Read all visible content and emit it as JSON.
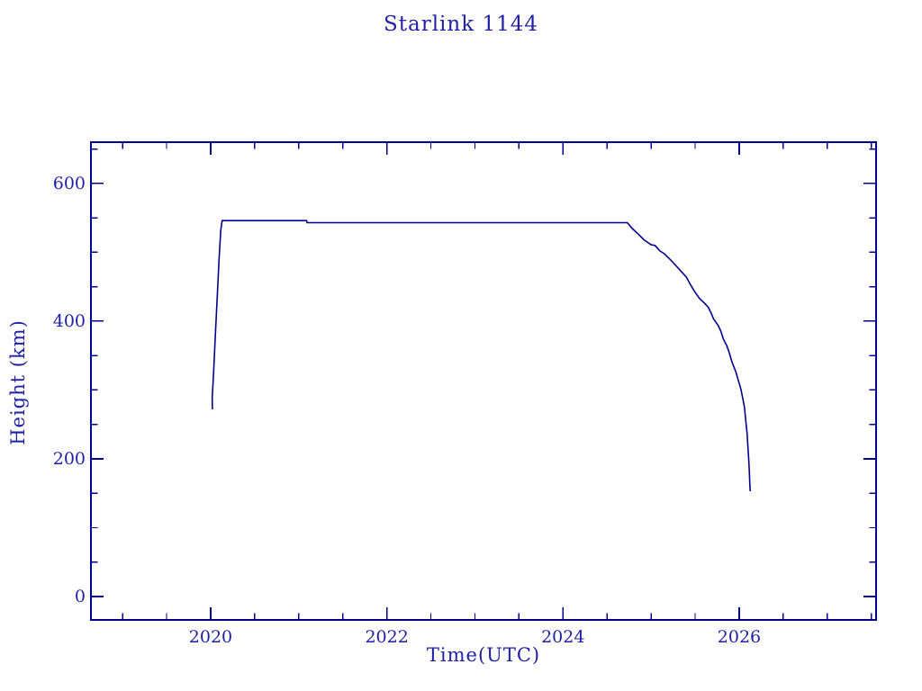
{
  "page": {
    "background": "#ffffff"
  },
  "colors": {
    "line": "#000090",
    "axis": "#000090",
    "text": "#1f1fa8"
  },
  "chart_data": {
    "type": "line",
    "title": "Starlink 1144",
    "xlabel": "Time(UTC)",
    "ylabel": "Height (km)",
    "x_range": [
      2018.641,
      2027.554
    ],
    "y_range": [
      -34,
      660
    ],
    "x_major_ticks": [
      2020,
      2022,
      2024,
      2026
    ],
    "x_tick_labels": [
      "2020",
      "2022",
      "2024",
      "2026"
    ],
    "x_minor_tick_step": 0.5,
    "y_major_ticks": [
      0,
      200,
      400,
      600
    ],
    "y_tick_labels": [
      "0",
      "200",
      "400",
      "600"
    ],
    "y_minor_tick_step": 50,
    "grid": false,
    "legend": "none",
    "frame": "box-with-inward-ticks",
    "series": [
      {
        "name": "orbital-height",
        "color": "#000090",
        "points": [
          [
            2020.02,
            272
          ],
          [
            2020.018,
            290
          ],
          [
            2020.022,
            298
          ],
          [
            2020.025,
            305
          ],
          [
            2020.035,
            330
          ],
          [
            2020.055,
            383
          ],
          [
            2020.075,
            436
          ],
          [
            2020.095,
            490
          ],
          [
            2020.115,
            532
          ],
          [
            2020.13,
            546
          ],
          [
            2021.09,
            546
          ],
          [
            2021.095,
            543
          ],
          [
            2024.73,
            543
          ],
          [
            2024.79,
            534
          ],
          [
            2024.85,
            527
          ],
          [
            2024.92,
            518
          ],
          [
            2025.0,
            511
          ],
          [
            2025.045,
            510
          ],
          [
            2025.1,
            502
          ],
          [
            2025.15,
            498
          ],
          [
            2025.22,
            489
          ],
          [
            2025.28,
            481
          ],
          [
            2025.35,
            471
          ],
          [
            2025.4,
            464
          ],
          [
            2025.45,
            452
          ],
          [
            2025.5,
            442
          ],
          [
            2025.55,
            433
          ],
          [
            2025.6,
            427
          ],
          [
            2025.65,
            420
          ],
          [
            2025.68,
            412
          ],
          [
            2025.71,
            403
          ],
          [
            2025.76,
            394
          ],
          [
            2025.79,
            386
          ],
          [
            2025.82,
            374
          ],
          [
            2025.86,
            364
          ],
          [
            2025.89,
            353
          ],
          [
            2025.92,
            340
          ],
          [
            2025.96,
            327
          ],
          [
            2025.99,
            314
          ],
          [
            2026.02,
            301
          ],
          [
            2026.04,
            288
          ],
          [
            2026.06,
            275
          ],
          [
            2026.07,
            262
          ],
          [
            2026.08,
            249
          ],
          [
            2026.09,
            236
          ],
          [
            2026.1,
            217
          ],
          [
            2026.108,
            200
          ],
          [
            2026.115,
            183
          ],
          [
            2026.12,
            165
          ],
          [
            2026.125,
            153
          ]
        ]
      }
    ]
  }
}
